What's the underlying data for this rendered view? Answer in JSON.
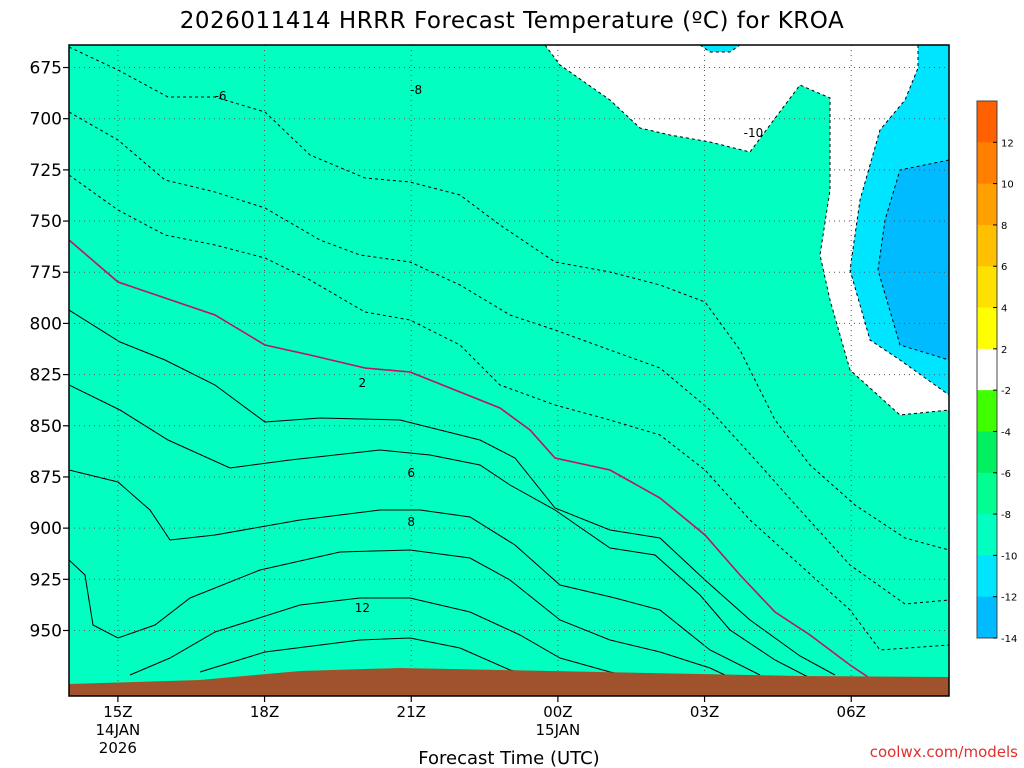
{
  "chart_data": {
    "type": "heatmap",
    "title": "2026011414 HRRR Forecast Temperature (ºC) for KROA",
    "xlabel": "Forecast Time (UTC)",
    "ylabel": "",
    "x_ticks": [
      {
        "hour": 15,
        "label": "15Z",
        "line2": "14JAN",
        "line3": "2026"
      },
      {
        "hour": 18,
        "label": "18Z",
        "line2": "",
        "line3": ""
      },
      {
        "hour": 21,
        "label": "21Z",
        "line2": "",
        "line3": ""
      },
      {
        "hour": 24,
        "label": "00Z",
        "line2": "15JAN",
        "line3": ""
      },
      {
        "hour": 27,
        "label": "03Z",
        "line2": "",
        "line3": ""
      },
      {
        "hour": 30,
        "label": "06Z",
        "line2": "",
        "line3": ""
      }
    ],
    "xlim_hours_since_14JAN_00Z": [
      14,
      32
    ],
    "y_ticks": [
      675,
      700,
      725,
      750,
      775,
      800,
      825,
      850,
      875,
      900,
      925,
      950
    ],
    "ylim": [
      664,
      982
    ],
    "y_scale": "pressure (hPa), increasing downward",
    "grid": true,
    "levels": [
      -16,
      -14,
      -12,
      -10,
      -8,
      -6,
      -4,
      -2,
      2,
      4,
      6,
      8,
      10,
      12,
      14
    ],
    "colorbar_labels": [
      "12",
      "10",
      "8",
      "6",
      "4",
      "2",
      "-2",
      "-4",
      "-6",
      "-8",
      "-10",
      "-12",
      "-14"
    ],
    "colorbar_colors": [
      "#00bbff",
      "#00e5ff",
      "#00ffc0",
      "#00ff90",
      "#00f060",
      "#40ff00",
      "#ffffff",
      "#ffff00",
      "#ffe000",
      "#ffc000",
      "#ffa000",
      "#ff8000",
      "#ff6000"
    ],
    "contour_labels": [
      {
        "text": "-6",
        "hour": 17.1,
        "p": 689
      },
      {
        "text": "-8",
        "hour": 21.1,
        "p": 686
      },
      {
        "text": "-10",
        "hour": 28.0,
        "p": 707
      },
      {
        "text": "2",
        "hour": 20.0,
        "p": 829
      },
      {
        "text": "6",
        "hour": 21.0,
        "p": 873
      },
      {
        "text": "8",
        "hour": 21.0,
        "p": 897
      },
      {
        "text": "12",
        "hour": 20.0,
        "p": 939
      }
    ],
    "terrain_color": "#a0522d",
    "credit": "coolwx.com/models"
  }
}
